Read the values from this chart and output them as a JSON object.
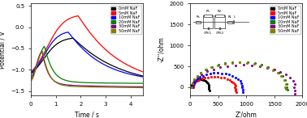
{
  "left": {
    "xlabel": "Time / s",
    "ylabel": "Potential / V",
    "xlim": [
      0,
      4.5
    ],
    "ylim": [
      -1.6,
      0.55
    ],
    "xticks": [
      0,
      1,
      2,
      3,
      4
    ],
    "yticks": [
      -1.5,
      -1.0,
      -0.5,
      0.0,
      0.5
    ],
    "legend": [
      "0mM NaF",
      "5mM NaF",
      "10mM NaF",
      "20mM NaF",
      "30mM NaF",
      "50mM NaF"
    ],
    "colors": [
      "black",
      "red",
      "blue",
      "green",
      "purple",
      "#808000"
    ]
  },
  "right": {
    "xlabel": "Z'/ohm",
    "ylabel": "-Z''/ohm",
    "xlim": [
      0,
      2000
    ],
    "ylim": [
      -200,
      2000
    ],
    "xticks": [
      0,
      500,
      1000,
      1500,
      2000
    ],
    "yticks": [
      0,
      500,
      1000,
      1500,
      2000
    ],
    "legend": [
      "0mM NaF",
      "5mM NaF",
      "10mM NaF",
      "20mM NaF",
      "30mM NaF",
      "50mM NaF"
    ],
    "colors": [
      "black",
      "red",
      "blue",
      "green",
      "purple",
      "#808000"
    ]
  }
}
